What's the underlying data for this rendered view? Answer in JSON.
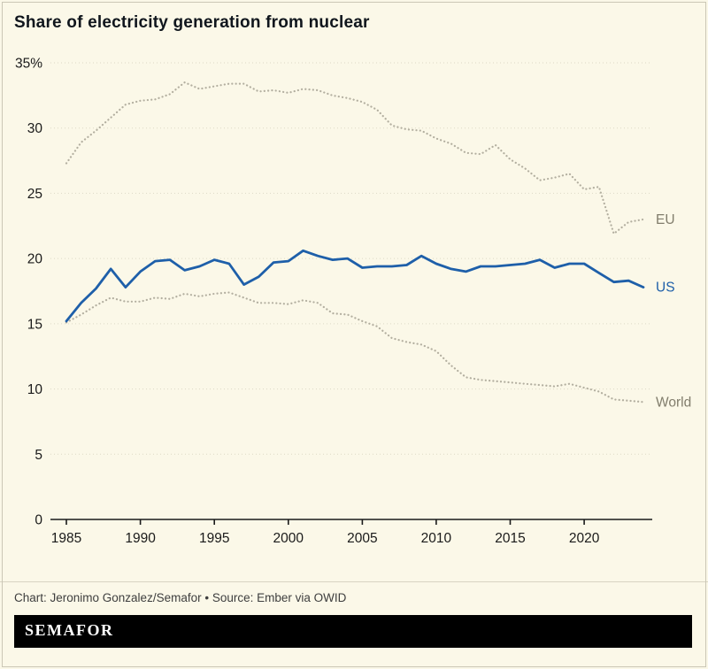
{
  "footer": {
    "credit": "Chart: Jeronimo Gonzalez/Semafor • Source: Ember via OWID",
    "logo": "SEMAFOR"
  },
  "colors": {
    "background": "#fbf8e8",
    "grid": "#ddd9c6",
    "axis": "#1a1a1a",
    "tick_text": "#1a1a1a",
    "title_text": "#10161d",
    "credit_text": "#3e3e3e",
    "logo_bg": "#000000",
    "logo_text": "#ffffff"
  },
  "chart_data": {
    "type": "line",
    "title": "Share of electricity generation from nuclear",
    "xlabel": "",
    "ylabel": "",
    "grid": "horizontal-dotted",
    "legend_position": "right-end-labels",
    "xlim": [
      1985,
      2024
    ],
    "ylim": [
      0,
      35
    ],
    "xticks": [
      1985,
      1990,
      1995,
      2000,
      2005,
      2010,
      2015,
      2020
    ],
    "yticks": [
      0,
      5,
      10,
      15,
      20,
      25,
      30,
      35
    ],
    "ytick_labels": [
      "0",
      "5",
      "10",
      "15",
      "20",
      "25",
      "30",
      "35%"
    ],
    "x": [
      1985,
      1986,
      1987,
      1988,
      1989,
      1990,
      1991,
      1992,
      1993,
      1994,
      1995,
      1996,
      1997,
      1998,
      1999,
      2000,
      2001,
      2002,
      2003,
      2004,
      2005,
      2006,
      2007,
      2008,
      2009,
      2010,
      2011,
      2012,
      2013,
      2014,
      2015,
      2016,
      2017,
      2018,
      2019,
      2020,
      2021,
      2022,
      2023,
      2024
    ],
    "series": [
      {
        "name": "EU",
        "style": "dotted",
        "color": "#b3afa0",
        "label_color": "#817d6c",
        "values": [
          27.3,
          28.9,
          29.8,
          30.8,
          31.8,
          32.1,
          32.2,
          32.6,
          33.5,
          33.0,
          33.2,
          33.4,
          33.4,
          32.8,
          32.9,
          32.7,
          33.0,
          32.9,
          32.5,
          32.3,
          32.0,
          31.4,
          30.2,
          29.9,
          29.8,
          29.2,
          28.8,
          28.1,
          28.0,
          28.7,
          27.6,
          26.9,
          26.0,
          26.2,
          26.5,
          25.3,
          25.5,
          21.9,
          22.8,
          23.0
        ]
      },
      {
        "name": "World",
        "style": "dotted",
        "color": "#b3afa0",
        "label_color": "#817d6c",
        "values": [
          15.1,
          15.7,
          16.4,
          17.0,
          16.7,
          16.7,
          17.0,
          16.9,
          17.3,
          17.1,
          17.3,
          17.4,
          17.0,
          16.6,
          16.6,
          16.5,
          16.8,
          16.6,
          15.8,
          15.7,
          15.2,
          14.8,
          13.9,
          13.6,
          13.4,
          12.9,
          11.8,
          10.9,
          10.7,
          10.6,
          10.5,
          10.4,
          10.3,
          10.2,
          10.4,
          10.1,
          9.8,
          9.2,
          9.1,
          9.0
        ]
      },
      {
        "name": "US",
        "style": "solid",
        "color": "#1e5fa9",
        "label_color": "#1e5fa9",
        "values": [
          15.2,
          16.6,
          17.7,
          19.2,
          17.8,
          19.0,
          19.8,
          19.9,
          19.1,
          19.4,
          19.9,
          19.6,
          18.0,
          18.6,
          19.7,
          19.8,
          20.6,
          20.2,
          19.9,
          20.0,
          19.3,
          19.4,
          19.4,
          19.5,
          20.2,
          19.6,
          19.2,
          19.0,
          19.4,
          19.4,
          19.5,
          19.6,
          19.9,
          19.3,
          19.6,
          19.6,
          18.9,
          18.2,
          18.3,
          17.8
        ]
      }
    ]
  }
}
